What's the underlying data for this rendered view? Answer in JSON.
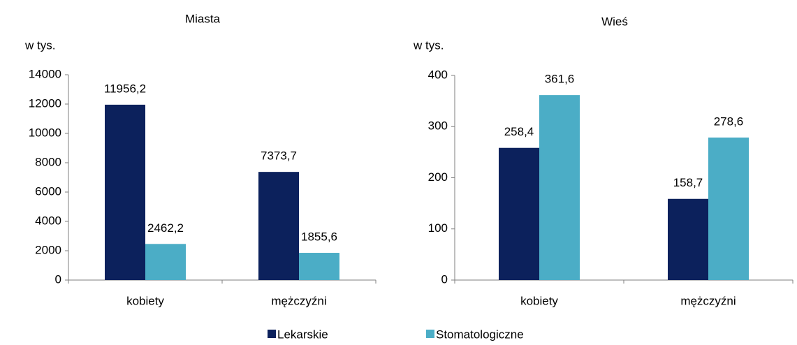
{
  "chart_data": [
    {
      "type": "bar",
      "title": "Miasta",
      "y_label": "w tys.",
      "categories": [
        "kobiety",
        "mężczyźni"
      ],
      "series": [
        {
          "name": "Lekarskie",
          "color": "#0c215c",
          "values": [
            11956.2,
            7373.7
          ],
          "value_labels": [
            "11956,2",
            "7373,7"
          ]
        },
        {
          "name": "Stomatologiczne",
          "color": "#4badc6",
          "values": [
            2462.2,
            1855.6
          ],
          "value_labels": [
            "2462,2",
            "1855,6"
          ]
        }
      ],
      "ylim": [
        0,
        14000
      ],
      "yticks": [
        0,
        2000,
        4000,
        6000,
        8000,
        10000,
        12000,
        14000
      ],
      "grid": false
    },
    {
      "type": "bar",
      "title": "Wieś",
      "y_label": "w tys.",
      "categories": [
        "kobiety",
        "mężczyźni"
      ],
      "series": [
        {
          "name": "Lekarskie",
          "color": "#0c215c",
          "values": [
            258.4,
            158.7
          ],
          "value_labels": [
            "258,4",
            "158,7"
          ]
        },
        {
          "name": "Stomatologiczne",
          "color": "#4badc6",
          "values": [
            361.6,
            278.6
          ],
          "value_labels": [
            "361,6",
            "278,6"
          ]
        }
      ],
      "ylim": [
        0,
        400
      ],
      "yticks": [
        0,
        100,
        200,
        300,
        400
      ],
      "grid": false
    }
  ]
}
